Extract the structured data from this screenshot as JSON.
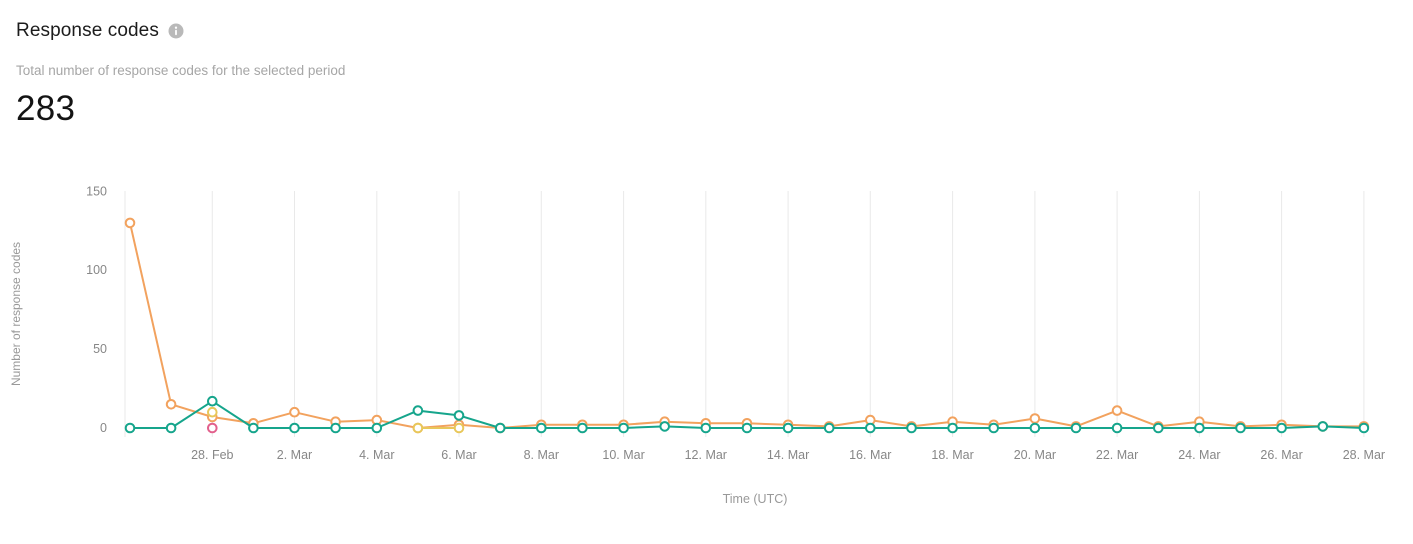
{
  "header": {
    "title": "Response codes",
    "info_icon": "info-icon",
    "subtitle": "Total number of response codes for the selected period",
    "total": "283"
  },
  "chart_data": {
    "type": "line",
    "title": "Response codes",
    "xlabel": "Time (UTC)",
    "ylabel": "Number of response codes",
    "ylim": [
      -6,
      155
    ],
    "grid": "vertical-only",
    "legend": "none",
    "marker_style": "hollow-circle",
    "x": [
      "26. Feb",
      "27. Feb",
      "28. Feb",
      "1. Mar",
      "2. Mar",
      "3. Mar",
      "4. Mar",
      "5. Mar",
      "6. Mar",
      "7. Mar",
      "8. Mar",
      "9. Mar",
      "10. Mar",
      "11. Mar",
      "12. Mar",
      "13. Mar",
      "14. Mar",
      "15. Mar",
      "16. Mar",
      "17. Mar",
      "18. Mar",
      "19. Mar",
      "20. Mar",
      "21. Mar",
      "22. Mar",
      "23. Mar",
      "24. Mar",
      "25. Mar",
      "26. Mar",
      "27. Mar",
      "28. Mar"
    ],
    "x_ticks": [
      {
        "i": 2,
        "label": "28. Feb"
      },
      {
        "i": 4,
        "label": "2. Mar"
      },
      {
        "i": 6,
        "label": "4. Mar"
      },
      {
        "i": 8,
        "label": "6. Mar"
      },
      {
        "i": 10,
        "label": "8. Mar"
      },
      {
        "i": 12,
        "label": "10. Mar"
      },
      {
        "i": 14,
        "label": "12. Mar"
      },
      {
        "i": 16,
        "label": "14. Mar"
      },
      {
        "i": 18,
        "label": "16. Mar"
      },
      {
        "i": 20,
        "label": "18. Mar"
      },
      {
        "i": 22,
        "label": "20. Mar"
      },
      {
        "i": 24,
        "label": "22. Mar"
      },
      {
        "i": 26,
        "label": "24. Mar"
      },
      {
        "i": 28,
        "label": "26. Mar"
      },
      {
        "i": 30,
        "label": "28. Mar"
      }
    ],
    "y_ticks": [
      {
        "v": 0,
        "label": "0"
      },
      {
        "v": 50,
        "label": "50"
      },
      {
        "v": 100,
        "label": "100"
      },
      {
        "v": 150,
        "label": "150"
      }
    ],
    "series": [
      {
        "name": "pink",
        "color": "#e2608c",
        "values": [
          null,
          null,
          0,
          null,
          null,
          null,
          null,
          null,
          null,
          null,
          null,
          null,
          null,
          null,
          null,
          null,
          null,
          null,
          null,
          null,
          null,
          null,
          null,
          null,
          null,
          null,
          null,
          null,
          null,
          null,
          null
        ]
      },
      {
        "name": "orange",
        "color": "#f2a25e",
        "values": [
          130,
          15,
          7,
          3,
          10,
          4,
          5,
          0,
          2,
          0,
          2,
          2,
          2,
          4,
          3,
          3,
          2,
          1,
          5,
          1,
          4,
          2,
          6,
          1,
          11,
          1,
          4,
          1,
          2,
          1,
          1
        ]
      },
      {
        "name": "yellow",
        "color": "#e8c75a",
        "values": [
          null,
          null,
          10,
          null,
          null,
          null,
          null,
          0,
          0,
          null,
          null,
          null,
          null,
          null,
          null,
          null,
          null,
          null,
          null,
          null,
          null,
          null,
          null,
          null,
          null,
          null,
          null,
          null,
          null,
          null,
          null
        ]
      },
      {
        "name": "teal",
        "color": "#16a58c",
        "values": [
          0,
          0,
          17,
          0,
          0,
          0,
          0,
          11,
          8,
          0,
          0,
          0,
          0,
          1,
          0,
          0,
          0,
          0,
          0,
          0,
          0,
          0,
          0,
          0,
          0,
          0,
          0,
          0,
          0,
          1,
          0
        ]
      }
    ],
    "colors": {
      "gridline": "#e9e9e9",
      "tick_text": "#878787",
      "axis_title_text": "#999999"
    }
  }
}
